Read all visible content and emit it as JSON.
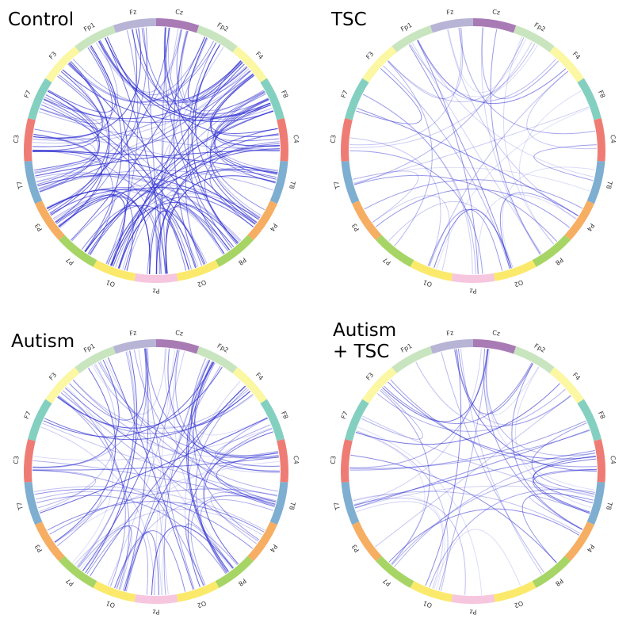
{
  "panels": [
    {
      "title": "Control",
      "electrodes": [
        "Cz",
        "Fp2",
        "F4",
        "F8",
        "C4",
        "T8",
        "P4",
        "P8",
        "O2",
        "Pz",
        "O1",
        "P7",
        "P3",
        "T7",
        "C3",
        "F7",
        "F3",
        "Fp1",
        "Fz"
      ]
    },
    {
      "title": "TSC",
      "electrodes": [
        "Cz",
        "Fp2",
        "F4",
        "F8",
        "C4",
        "T8",
        "P4",
        "P8",
        "O2",
        "Pz",
        "O1",
        "P7",
        "P3",
        "T7",
        "C3",
        "F7",
        "F3",
        "Fp1",
        "Fz"
      ]
    },
    {
      "title": "Autism",
      "electrodes": [
        "Cz",
        "Fp2",
        "F4",
        "F8",
        "C4",
        "T8",
        "P4",
        "P8",
        "O2",
        "Pz",
        "O1",
        "P7",
        "P3",
        "T7",
        "C3",
        "F7",
        "F3",
        "Fp1",
        "Fz"
      ]
    },
    {
      "title": "Autism + TSC",
      "electrodes": [
        "Cz",
        "Fp2",
        "F4",
        "F8",
        "C4",
        "T8",
        "P4",
        "P8",
        "O2",
        "Pz",
        "O1",
        "P7",
        "P3",
        "T7",
        "C3",
        "F7",
        "F3",
        "Fp1",
        "Fz"
      ]
    }
  ]
}
